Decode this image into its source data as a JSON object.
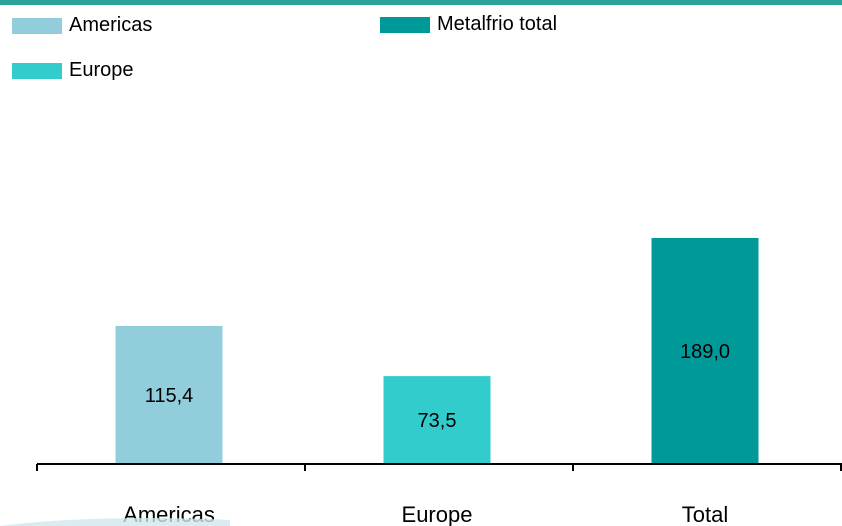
{
  "legend": [
    {
      "label": "Americas",
      "color": "#92cddc"
    },
    {
      "label": "Metalfrio total",
      "color": "#00999a"
    },
    {
      "label": "Europe",
      "color": "#33cccc"
    }
  ],
  "chart_data": {
    "type": "bar",
    "categories": [
      "Americas",
      "Europe",
      "Total"
    ],
    "values": [
      115.4,
      73.5,
      189.0
    ],
    "value_labels": [
      "115,4",
      "73,5",
      "189,0"
    ],
    "colors": [
      "#92cddc",
      "#33cccc",
      "#00999a"
    ],
    "title": "",
    "xlabel": "",
    "ylabel": "",
    "ylim": [
      0,
      189.0
    ],
    "grid": false,
    "legend_position": "top-left"
  }
}
